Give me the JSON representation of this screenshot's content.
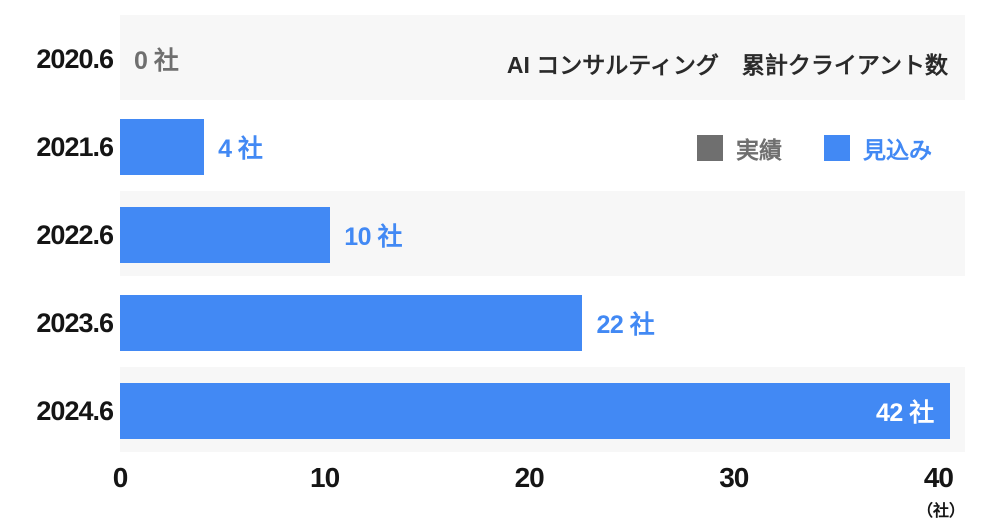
{
  "chart_data": {
    "type": "bar",
    "orientation": "horizontal",
    "title": "AI コンサルティング　累計クライアント数",
    "categories": [
      "2020.6",
      "2021.6",
      "2022.6",
      "2023.6",
      "2024.6"
    ],
    "series": [
      {
        "name": "見込み",
        "values": [
          0,
          4,
          10,
          22,
          42
        ]
      }
    ],
    "value_labels": [
      "0 社",
      "4 社",
      "10 社",
      "22 社",
      "42 社"
    ],
    "value_label_styles": [
      "muted",
      "accent",
      "accent",
      "accent",
      "inverted"
    ],
    "x_ticks": [
      0,
      10,
      20,
      30,
      40
    ],
    "xlim": [
      0,
      41.3
    ],
    "unit_label": "（社）",
    "legend": [
      {
        "label": "実績",
        "color": "#6f6f6f"
      },
      {
        "label": "見込み",
        "color": "#4289f4"
      }
    ],
    "legend_position": "top-right",
    "grid": false,
    "colors": {
      "bar": "#4289f4",
      "stripe": "#f7f7f7",
      "muted": "#6f6f6f",
      "axis_text": "#151515",
      "title_text": "#2a2a2a",
      "inside_label": "#ffffff",
      "background": "#ffffff"
    }
  }
}
